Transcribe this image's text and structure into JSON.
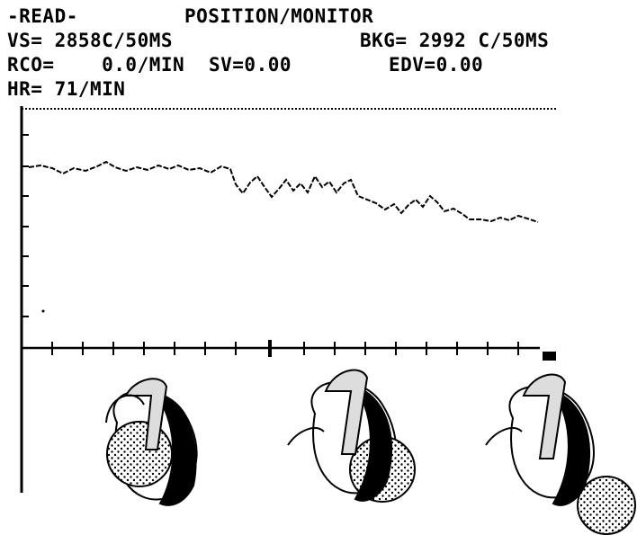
{
  "header": {
    "mode": "-READ-",
    "title": "POSITION/MONITOR",
    "vs": "VS= 2858C/50MS",
    "bkg": "BKG= 2992 C/50MS",
    "rco": "RCO=    0.0/MIN",
    "sv": "SV=0.00",
    "edv": "EDV=0.00",
    "hr": "HR= 71/MIN"
  }
}
